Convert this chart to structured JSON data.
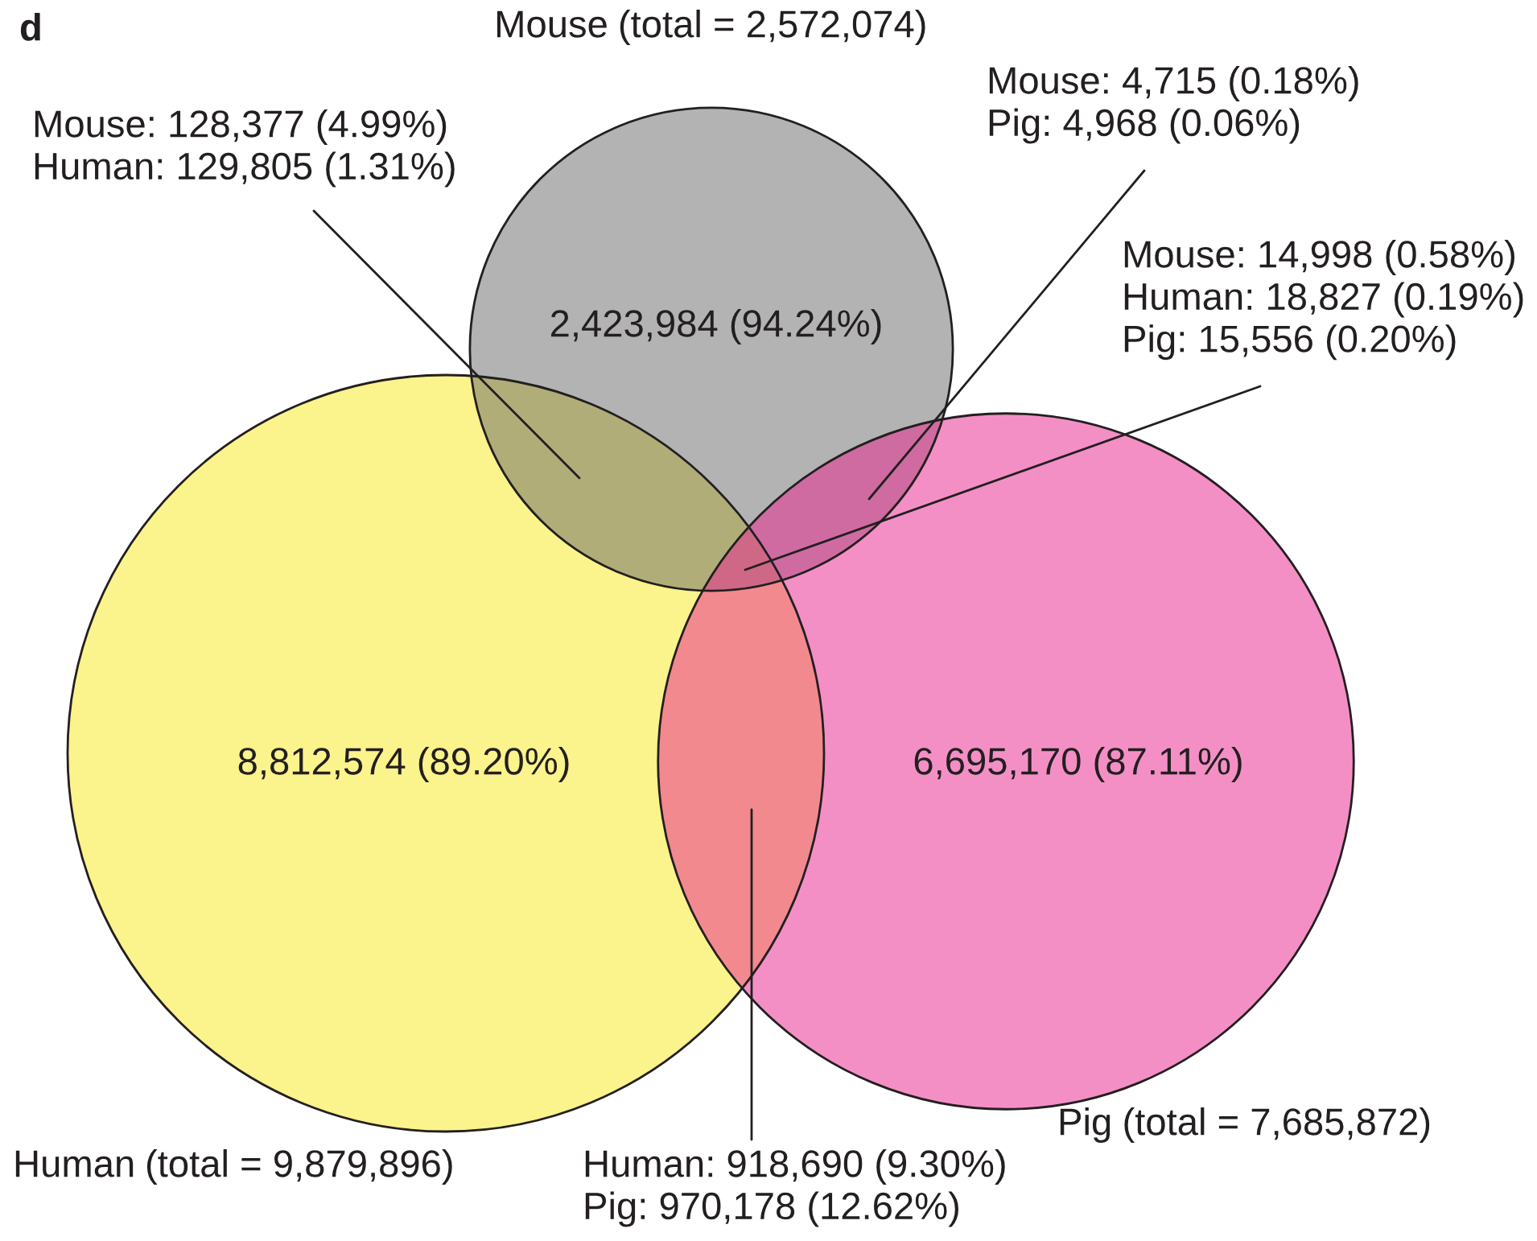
{
  "chart_data": {
    "type": "other",
    "title": "d",
    "categories": [
      "Mouse",
      "Human",
      "Pig"
    ],
    "values": [
      2572074,
      9879896,
      7685872
    ],
    "value_labels": [
      "(total = 2,572,074)",
      "(total = 9,879,896)",
      "(total = 7,685,872)"
    ],
    "colors": [
      "#b3b3b3",
      "#fbf38b",
      "#f48fc6"
    ],
    "annotations": [
      "Mouse: 128,377 (4.99%)\nHuman: 129,805 (1.31%)",
      "Mouse: 4,715 (0.18%)\nPig: 4,968 (0.06%)",
      "Mouse: 14,998 (0.58%)\nHuman: 18,827 (0.19%)\nPig: 15,556 (0.20%)",
      "2,423,984 (94.24%)",
      "8,812,574 (89.20%)",
      "6,695,170 (87.11%)",
      "Human: 918,690 (9.30%)\nPig: 970,178 (12.62%)"
    ]
  }
}
